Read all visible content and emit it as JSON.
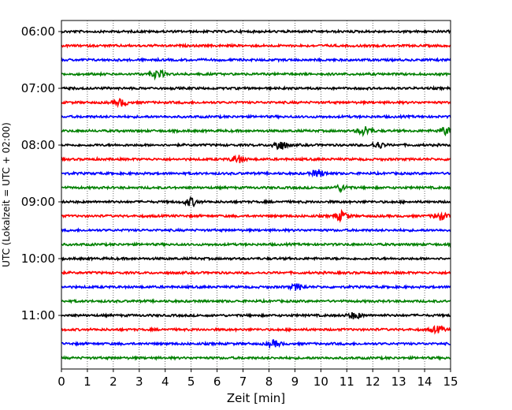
{
  "chart_data": {
    "type": "line",
    "title": "",
    "xlabel": "Zeit  [min]",
    "ylabel": "UTC (Lokalzeit = UTC + 02:00)",
    "xlim": [
      0,
      15
    ],
    "x_ticks": [
      0,
      1,
      2,
      3,
      4,
      5,
      6,
      7,
      8,
      9,
      10,
      11,
      12,
      13,
      14,
      15
    ],
    "y_tick_labels": [
      "06:00",
      "07:00",
      "08:00",
      "09:00",
      "10:00",
      "11:00"
    ],
    "y_tick_rows": [
      0,
      4,
      8,
      12,
      16,
      20
    ],
    "grid": "vertical-dotted",
    "trace_colors": [
      "#000000",
      "#ff0000",
      "#0000ff",
      "#008000"
    ],
    "trace_count": 24,
    "trace_start": "06:00",
    "trace_interval_min": 15,
    "events": [
      {
        "row": 3,
        "t": 3.7,
        "amp": 1.6
      },
      {
        "row": 5,
        "t": 2.3,
        "amp": 1.3
      },
      {
        "row": 7,
        "t": 11.7,
        "amp": 1.8
      },
      {
        "row": 7,
        "t": 14.8,
        "amp": 1.4
      },
      {
        "row": 8,
        "t": 8.4,
        "amp": 2.0
      },
      {
        "row": 8,
        "t": 12.2,
        "amp": 1.2
      },
      {
        "row": 9,
        "t": 6.8,
        "amp": 1.5
      },
      {
        "row": 10,
        "t": 9.9,
        "amp": 1.4
      },
      {
        "row": 11,
        "t": 10.8,
        "amp": 1.2
      },
      {
        "row": 12,
        "t": 5.0,
        "amp": 1.5
      },
      {
        "row": 13,
        "t": 10.8,
        "amp": 1.8
      },
      {
        "row": 13,
        "t": 14.6,
        "amp": 1.4
      },
      {
        "row": 18,
        "t": 9.1,
        "amp": 1.2
      },
      {
        "row": 20,
        "t": 11.3,
        "amp": 1.3
      },
      {
        "row": 21,
        "t": 14.5,
        "amp": 1.2
      },
      {
        "row": 22,
        "t": 8.2,
        "amp": 1.2
      }
    ]
  }
}
